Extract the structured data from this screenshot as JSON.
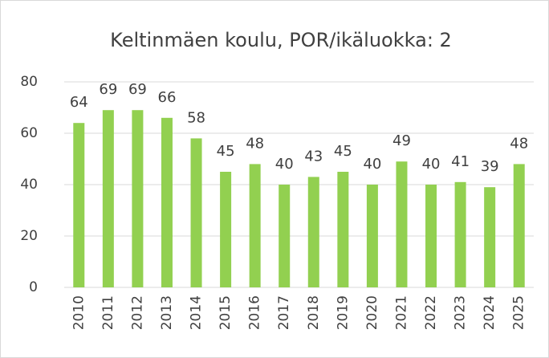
{
  "chart_data": {
    "type": "bar",
    "title": "Keltinmäen koulu, POR/ikäluokka: 2",
    "categories": [
      "2010",
      "2011",
      "2012",
      "2013",
      "2014",
      "2015",
      "2016",
      "2017",
      "2018",
      "2019",
      "2020",
      "2021",
      "2022",
      "2023",
      "2024",
      "2025"
    ],
    "values": [
      64,
      69,
      69,
      66,
      58,
      45,
      48,
      40,
      43,
      45,
      40,
      49,
      40,
      41,
      39,
      48
    ],
    "color": "#92d050",
    "ylim": [
      0,
      80
    ],
    "yticks": [
      0,
      20,
      40,
      60,
      80
    ],
    "grid": true
  }
}
